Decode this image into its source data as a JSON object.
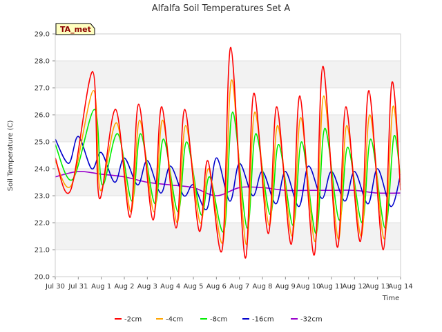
{
  "chart_data": {
    "type": "line",
    "title": "Alfalfa Soil Temperatures Set A",
    "xlabel": "Time",
    "ylabel": "Soil Temperature (C)",
    "ylim": [
      20.0,
      29.0
    ],
    "xlim": [
      "2012-07-30",
      "2012-08-14"
    ],
    "yticks": [
      "20.0",
      "21.0",
      "22.0",
      "23.0",
      "24.0",
      "25.0",
      "26.0",
      "27.0",
      "28.0",
      "29.0"
    ],
    "xticks": [
      "Jul 30",
      "Jul 31",
      "Aug 1",
      "Aug 2",
      "Aug 3",
      "Aug 4",
      "Aug 5",
      "Aug 6",
      "Aug 7",
      "Aug 8",
      "Aug 9",
      "Aug 10",
      "Aug 11",
      "Aug 12",
      "Aug 13",
      "Aug 14"
    ],
    "grid": "horizontal bands",
    "legend_position": "bottom-center",
    "annotation": "TA_met",
    "series": [
      {
        "name": "-2cm",
        "color": "#ff0000",
        "x": [
          "2012-07-30",
          "2012-07-30 16:00",
          "2012-07-31 15:00",
          "2012-07-31 22:00",
          "2012-08-01 15:00",
          "2012-08-02 06:00",
          "2012-08-02 15:00",
          "2012-08-03 06:00",
          "2012-08-03 15:00",
          "2012-08-04 06:00",
          "2012-08-04 15:00",
          "2012-08-05 06:00",
          "2012-08-05 15:00",
          "2012-08-06 06:00",
          "2012-08-06 15:00",
          "2012-08-07 06:00",
          "2012-08-07 15:00",
          "2012-08-08 06:00",
          "2012-08-08 15:00",
          "2012-08-09 06:00",
          "2012-08-09 15:00",
          "2012-08-10 06:00",
          "2012-08-10 15:00",
          "2012-08-11 06:00",
          "2012-08-11 15:00",
          "2012-08-12 06:00",
          "2012-08-12 15:00",
          "2012-08-13 06:00",
          "2012-08-13 15:00",
          "2012-08-14"
        ],
        "y": [
          24.4,
          23.2,
          27.6,
          22.9,
          26.2,
          22.2,
          26.4,
          22.1,
          26.3,
          21.8,
          26.2,
          21.7,
          24.3,
          21.0,
          28.5,
          20.7,
          26.8,
          21.6,
          26.3,
          21.2,
          26.7,
          20.8,
          27.8,
          21.1,
          26.3,
          21.3,
          26.9,
          21.0,
          27.2,
          23.2
        ]
      },
      {
        "name": "-4cm",
        "color": "#ffa500",
        "x": [
          "2012-07-30",
          "2012-07-30 17:00",
          "2012-07-31 16:00",
          "2012-07-31 23:00",
          "2012-08-01 16:00",
          "2012-08-02 07:00",
          "2012-08-02 16:00",
          "2012-08-03 07:00",
          "2012-08-03 16:00",
          "2012-08-04 07:00",
          "2012-08-04 16:00",
          "2012-08-05 07:00",
          "2012-08-05 16:00",
          "2012-08-06 07:00",
          "2012-08-06 16:00",
          "2012-08-07 07:00",
          "2012-08-07 16:00",
          "2012-08-08 07:00",
          "2012-08-08 16:00",
          "2012-08-09 07:00",
          "2012-08-09 16:00",
          "2012-08-10 07:00",
          "2012-08-10 16:00",
          "2012-08-11 07:00",
          "2012-08-11 16:00",
          "2012-08-12 07:00",
          "2012-08-12 16:00",
          "2012-08-13 07:00",
          "2012-08-13 16:00",
          "2012-08-14"
        ],
        "y": [
          24.3,
          23.4,
          26.9,
          23.2,
          25.7,
          22.4,
          25.8,
          22.4,
          25.8,
          22.0,
          25.6,
          22.0,
          24.0,
          21.3,
          27.3,
          21.2,
          26.1,
          21.9,
          25.6,
          21.5,
          25.9,
          21.3,
          26.7,
          21.4,
          25.6,
          21.5,
          26.0,
          21.4,
          26.3,
          23.4
        ]
      },
      {
        "name": "-8cm",
        "color": "#00ee00",
        "x": [
          "2012-07-30",
          "2012-07-30 18:00",
          "2012-07-31 17:00",
          "2012-08-01 01:00",
          "2012-08-01 17:00",
          "2012-08-02 08:00",
          "2012-08-02 17:00",
          "2012-08-03 08:00",
          "2012-08-03 17:00",
          "2012-08-04 08:00",
          "2012-08-04 17:00",
          "2012-08-05 08:00",
          "2012-08-05 17:00",
          "2012-08-06 08:00",
          "2012-08-06 17:00",
          "2012-08-07 08:00",
          "2012-08-07 17:00",
          "2012-08-08 08:00",
          "2012-08-08 17:00",
          "2012-08-09 08:00",
          "2012-08-09 17:00",
          "2012-08-10 08:00",
          "2012-08-10 17:00",
          "2012-08-11 08:00",
          "2012-08-11 17:00",
          "2012-08-12 08:00",
          "2012-08-12 17:00",
          "2012-08-13 08:00",
          "2012-08-13 17:00",
          "2012-08-14"
        ],
        "y": [
          24.9,
          23.6,
          26.2,
          23.4,
          25.3,
          22.8,
          25.3,
          22.7,
          25.1,
          22.4,
          25.0,
          22.3,
          23.7,
          21.7,
          26.1,
          21.8,
          25.3,
          22.3,
          24.9,
          21.9,
          25.0,
          21.6,
          25.5,
          22.1,
          24.8,
          22.0,
          25.1,
          21.8,
          25.2,
          23.6
        ]
      },
      {
        "name": "-16cm",
        "color": "#0000cc",
        "x": [
          "2012-07-30",
          "2012-07-30 14:00",
          "2012-07-31",
          "2012-07-31 14:00",
          "2012-08-01",
          "2012-08-01 14:00",
          "2012-08-02",
          "2012-08-02 14:00",
          "2012-08-03",
          "2012-08-03 14:00",
          "2012-08-04",
          "2012-08-04 14:00",
          "2012-08-05",
          "2012-08-05 14:00",
          "2012-08-06",
          "2012-08-06 14:00",
          "2012-08-07",
          "2012-08-07 14:00",
          "2012-08-08",
          "2012-08-08 14:00",
          "2012-08-09",
          "2012-08-09 14:00",
          "2012-08-10",
          "2012-08-10 14:00",
          "2012-08-11",
          "2012-08-11 14:00",
          "2012-08-12",
          "2012-08-12 14:00",
          "2012-08-13",
          "2012-08-13 14:00",
          "2012-08-14"
        ],
        "y": [
          25.1,
          24.2,
          25.2,
          24.0,
          24.6,
          23.5,
          24.4,
          23.4,
          24.3,
          23.1,
          24.1,
          23.0,
          23.4,
          22.5,
          24.4,
          22.8,
          24.2,
          23.0,
          23.9,
          22.7,
          23.9,
          22.6,
          24.1,
          22.9,
          23.9,
          22.8,
          23.9,
          22.7,
          24.0,
          22.6,
          23.8
        ]
      },
      {
        "name": "-32cm",
        "color": "#9900cc",
        "x": [
          "2012-07-30",
          "2012-07-31",
          "2012-08-01",
          "2012-08-02",
          "2012-08-03",
          "2012-08-04",
          "2012-08-05",
          "2012-08-06",
          "2012-08-07",
          "2012-08-08",
          "2012-08-09",
          "2012-08-10",
          "2012-08-11",
          "2012-08-12",
          "2012-08-13",
          "2012-08-14"
        ],
        "y": [
          23.7,
          23.9,
          23.8,
          23.7,
          23.5,
          23.4,
          23.3,
          23.0,
          23.3,
          23.3,
          23.2,
          23.2,
          23.2,
          23.2,
          23.1,
          23.1
        ]
      }
    ]
  }
}
